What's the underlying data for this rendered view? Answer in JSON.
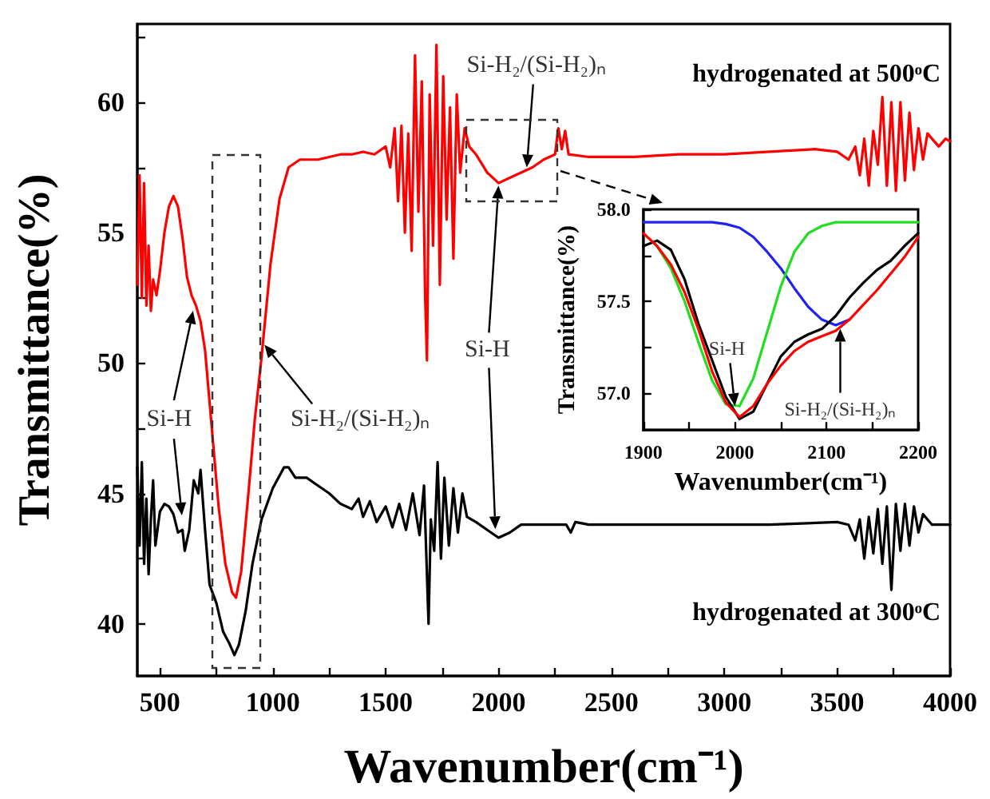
{
  "chart_data": [
    {
      "type": "line",
      "xlabel": "Wavenumber(cm⁻¹)",
      "ylabel": "Transmittance(%)",
      "xlim": [
        400,
        4000
      ],
      "ylim": [
        38,
        63
      ],
      "xticks": [
        500,
        {
          "value": 750,
          "label": null
        },
        1000,
        {
          "value": 1250,
          "label": null
        },
        1500,
        {
          "value": 1750,
          "label": null
        },
        2000,
        {
          "value": 2250,
          "label": null
        },
        2500,
        {
          "value": 2750,
          "label": null
        },
        3000,
        {
          "value": 3250,
          "label": null
        },
        3500,
        {
          "value": 3750,
          "label": null
        },
        4000
      ],
      "yticks": [
        40,
        {
          "value": 42.5,
          "label": null
        },
        45,
        {
          "value": 47.5,
          "label": null
        },
        50,
        {
          "value": 52.5,
          "label": null
        },
        55,
        {
          "value": 57.5,
          "label": null
        },
        60,
        {
          "value": 62.5,
          "label": null
        }
      ],
      "marker": "none",
      "line_style": "solid",
      "series": [
        {
          "name": "hydrogenated at 500ᵒC",
          "color": "#ff0000",
          "x": [
            400,
            410,
            420,
            430,
            440,
            450,
            460,
            470,
            485,
            500,
            520,
            540,
            560,
            580,
            600,
            620,
            640,
            660,
            680,
            700,
            730,
            760,
            790,
            820,
            837,
            860,
            890,
            920,
            950,
            990,
            1030,
            1070,
            1120,
            1200,
            1300,
            1350,
            1400,
            1450,
            1500,
            1520,
            1540,
            1555,
            1570,
            1585,
            1600,
            1615,
            1630,
            1645,
            1660,
            1675,
            1683,
            1695,
            1710,
            1725,
            1740,
            1755,
            1770,
            1785,
            1800,
            1815,
            1830,
            1850,
            1870,
            1900,
            1950,
            2000,
            2050,
            2100,
            2150,
            2200,
            2250,
            2265,
            2280,
            2295,
            2310,
            2400,
            2600,
            2800,
            3000,
            3200,
            3400,
            3500,
            3550,
            3580,
            3600,
            3620,
            3640,
            3660,
            3680,
            3700,
            3720,
            3740,
            3760,
            3780,
            3800,
            3820,
            3840,
            3860,
            3880,
            3900,
            3950,
            3980,
            4000
          ],
          "values": [
            53.0,
            57.2,
            52.5,
            56.9,
            52.2,
            54.5,
            52.0,
            53.2,
            52.6,
            53.5,
            55.0,
            56.0,
            56.4,
            56.0,
            54.8,
            53.3,
            52.6,
            52.2,
            51.6,
            50.5,
            47.5,
            44.5,
            42.3,
            41.2,
            41.0,
            42.0,
            44.8,
            47.8,
            50.2,
            53.8,
            56.3,
            57.5,
            57.8,
            57.8,
            58.0,
            58.0,
            58.1,
            58.0,
            58.3,
            57.5,
            59.0,
            56.2,
            59.1,
            55.0,
            58.8,
            54.3,
            61.8,
            55.8,
            60.8,
            52.5,
            50.1,
            60.3,
            54.5,
            62.2,
            53.0,
            61.0,
            55.5,
            59.8,
            54.0,
            60.3,
            57.3,
            59.0,
            58.3,
            58.0,
            57.3,
            56.9,
            57.1,
            57.3,
            57.5,
            57.8,
            58.0,
            59.0,
            58.2,
            58.9,
            58.0,
            57.9,
            57.9,
            58.0,
            58.0,
            58.1,
            58.2,
            58.1,
            57.8,
            58.3,
            57.2,
            58.6,
            56.8,
            58.9,
            57.6,
            60.2,
            56.8,
            60.0,
            56.6,
            60.0,
            57.0,
            59.6,
            57.4,
            59.0,
            57.8,
            58.8,
            58.3,
            58.6,
            58.5
          ]
        },
        {
          "name": "hydrogenated at 300ᵒC",
          "color": "#000000",
          "x": [
            400,
            410,
            420,
            430,
            440,
            450,
            460,
            470,
            480,
            500,
            520,
            540,
            560,
            580,
            600,
            610,
            630,
            650,
            670,
            680,
            700,
            720,
            750,
            780,
            810,
            830,
            850,
            880,
            910,
            950,
            1000,
            1050,
            1070,
            1100,
            1150,
            1200,
            1250,
            1300,
            1350,
            1380,
            1400,
            1430,
            1460,
            1500,
            1530,
            1560,
            1590,
            1620,
            1650,
            1670,
            1690,
            1700,
            1715,
            1730,
            1745,
            1760,
            1780,
            1800,
            1820,
            1840,
            1860,
            1900,
            1950,
            2000,
            2050,
            2100,
            2200,
            2300,
            2320,
            2340,
            2400,
            2800,
            3200,
            3500,
            3550,
            3580,
            3600,
            3620,
            3640,
            3660,
            3680,
            3700,
            3720,
            3740,
            3760,
            3780,
            3800,
            3820,
            3840,
            3860,
            3880,
            3920,
            4000
          ],
          "values": [
            46.0,
            43.0,
            46.2,
            42.3,
            44.8,
            41.9,
            44.0,
            45.5,
            43.0,
            44.3,
            44.6,
            44.5,
            44.2,
            43.5,
            43.6,
            42.8,
            43.6,
            45.5,
            45.0,
            45.9,
            43.6,
            41.5,
            40.8,
            39.7,
            39.2,
            38.8,
            39.2,
            40.5,
            42.3,
            44.0,
            45.2,
            46.0,
            46.0,
            45.6,
            45.6,
            45.3,
            45.0,
            44.6,
            44.4,
            44.8,
            44.1,
            44.7,
            43.9,
            44.5,
            43.7,
            44.6,
            43.6,
            45.0,
            43.4,
            45.3,
            40.0,
            44.0,
            42.8,
            46.2,
            42.5,
            45.6,
            43.0,
            45.2,
            43.5,
            45.0,
            44.1,
            43.9,
            43.6,
            43.3,
            43.5,
            43.8,
            43.8,
            43.8,
            43.5,
            43.9,
            43.8,
            43.8,
            43.8,
            43.9,
            43.8,
            43.2,
            44.0,
            42.5,
            44.1,
            42.7,
            44.4,
            42.3,
            44.5,
            41.3,
            44.6,
            42.8,
            44.6,
            43.0,
            44.5,
            43.5,
            44.2,
            43.8,
            43.8
          ]
        }
      ],
      "annotations": [
        {
          "text": "Si-H",
          "x": 647,
          "y": 52.0
        },
        {
          "text": "Si-H₂/(Si-H₂)ₙ",
          "x": 963,
          "y": 50.7
        },
        {
          "text": "Si-H",
          "x": 2000,
          "y": 56.8
        },
        {
          "text": "Si-H₂/(Si-H₂)ₙ",
          "x": 2125,
          "y": 57.5
        }
      ]
    },
    {
      "type": "line",
      "xlabel": "Wavenumber(cm⁻¹)",
      "ylabel": "Transmittance(%)",
      "xlim": [
        1900,
        2200
      ],
      "ylim": [
        56.8,
        58.0
      ],
      "xticks": [
        1900,
        {
          "value": 1950,
          "label": null
        },
        2000,
        {
          "value": 2050,
          "label": null
        },
        2100,
        {
          "value": 2150,
          "label": null
        },
        2200
      ],
      "yticks": [
        {
          "value": 57,
          "label": "57.0"
        },
        {
          "value": 57.25,
          "label": null
        },
        57.5,
        {
          "value": 57.75,
          "label": null
        },
        {
          "value": 58,
          "label": "58.0"
        }
      ],
      "marker": "none",
      "line_style": "solid",
      "x": [
        1900,
        1915,
        1930,
        1945,
        1960,
        1975,
        1990,
        2005,
        2020,
        2035,
        2050,
        2065,
        2080,
        2095,
        2110,
        2125,
        2140,
        2155,
        2170,
        2185,
        2200
      ],
      "series": [
        {
          "color": "#2222ee",
          "values": [
            57.93,
            57.93,
            57.93,
            57.93,
            57.93,
            57.93,
            57.92,
            57.9,
            57.85,
            57.77,
            57.68,
            57.57,
            57.47,
            57.4,
            57.37,
            57.4,
            null,
            null,
            null,
            null,
            null
          ]
        },
        {
          "color": "#22dd22",
          "values": [
            null,
            57.8,
            57.68,
            57.5,
            57.28,
            57.07,
            56.94,
            56.93,
            57.08,
            57.33,
            57.58,
            57.77,
            57.87,
            57.91,
            57.93,
            57.93,
            57.93,
            57.93,
            57.93,
            57.93,
            57.93
          ]
        },
        {
          "color": "#000000",
          "values": [
            57.8,
            57.83,
            57.78,
            57.62,
            57.38,
            57.18,
            56.98,
            56.86,
            56.9,
            57.05,
            57.2,
            57.28,
            57.32,
            57.35,
            57.42,
            57.52,
            57.6,
            57.67,
            57.72,
            57.8,
            57.87
          ]
        },
        {
          "color": "#ff0000",
          "values": [
            57.87,
            57.8,
            57.7,
            57.55,
            57.35,
            57.12,
            56.95,
            56.87,
            56.93,
            57.05,
            57.15,
            57.23,
            57.28,
            57.31,
            57.34,
            57.4,
            57.48,
            57.56,
            57.65,
            57.74,
            57.85
          ]
        }
      ],
      "annotations": [
        {
          "text": "Si-H",
          "x": 2000,
          "y": 56.93
        },
        {
          "text": "Si-H₂/(Si-H₂)ₙ",
          "x": 2115,
          "y": 57.35
        }
      ]
    }
  ]
}
